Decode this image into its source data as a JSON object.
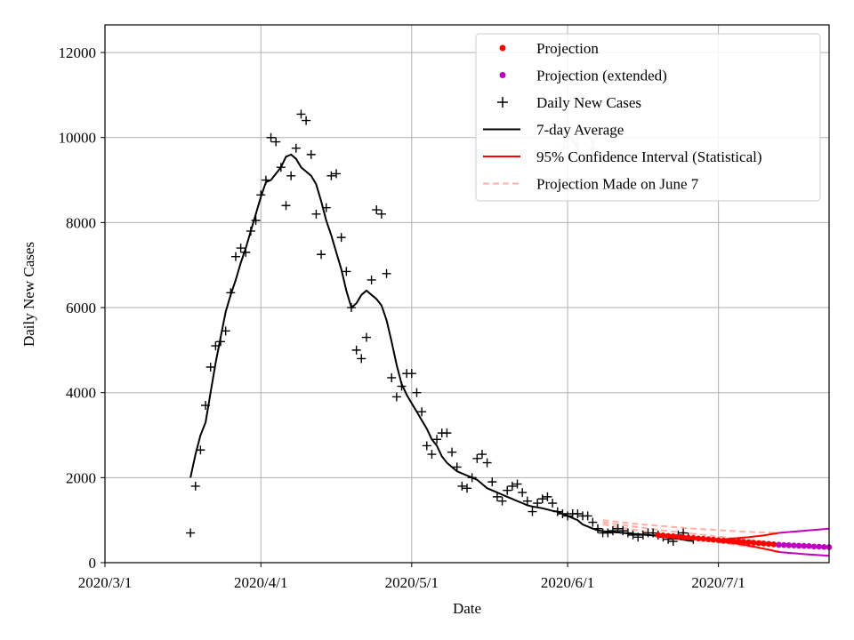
{
  "chart_data": {
    "type": "line",
    "title": "NY",
    "xlabel": "Date",
    "ylabel": "Daily New Cases",
    "x_axis": {
      "start_day": 0,
      "end_day": 144,
      "ticks": [
        {
          "day": 0,
          "label": "2020/3/1"
        },
        {
          "day": 31,
          "label": "2020/4/1"
        },
        {
          "day": 61,
          "label": "2020/5/1"
        },
        {
          "day": 92,
          "label": "2020/6/1"
        },
        {
          "day": 122,
          "label": "2020/7/1"
        }
      ]
    },
    "y_axis": {
      "min": 0,
      "max": 12650,
      "ticks": [
        {
          "value": 0,
          "label": "0"
        },
        {
          "value": 2000,
          "label": "2000"
        },
        {
          "value": 4000,
          "label": "4000"
        },
        {
          "value": 6000,
          "label": "6000"
        },
        {
          "value": 8000,
          "label": "8000"
        },
        {
          "value": 10000,
          "label": "10000"
        },
        {
          "value": 12000,
          "label": "12000"
        }
      ]
    },
    "grid": true,
    "legend_position": "top-right",
    "legend": [
      {
        "label": "Projection",
        "kind": "dot",
        "color": "#ff0000"
      },
      {
        "label": "Projection (extended)",
        "kind": "dot",
        "color": "#bf00bf"
      },
      {
        "label": "Daily New Cases",
        "kind": "plus",
        "color": "#000000"
      },
      {
        "label": "7-day Average",
        "kind": "line",
        "color": "#000000"
      },
      {
        "label": "95% Confidence Interval (Statistical)",
        "kind": "line",
        "color": "#ff0000"
      },
      {
        "label": "Projection Made on June 7",
        "kind": "dashed",
        "color": "#ffb0a8"
      }
    ],
    "series": [
      {
        "name": "Daily New Cases",
        "days": [
          17,
          18,
          19,
          20,
          21,
          22,
          23,
          24,
          25,
          26,
          27,
          28,
          29,
          30,
          31,
          32,
          33,
          34,
          35,
          36,
          37,
          38,
          39,
          40,
          41,
          42,
          43,
          44,
          45,
          46,
          47,
          48,
          49,
          50,
          51,
          52,
          53,
          54,
          55,
          56,
          57,
          58,
          59,
          60,
          61,
          62,
          63,
          64,
          65,
          66,
          67,
          68,
          69,
          70,
          71,
          72,
          73,
          74,
          75,
          76,
          77,
          78,
          79,
          80,
          81,
          82,
          83,
          84,
          85,
          86,
          87,
          88,
          89,
          90,
          91,
          92,
          93,
          94,
          95,
          96,
          97,
          98,
          99,
          100,
          101,
          102,
          103,
          104,
          105,
          106,
          107,
          108,
          109,
          110,
          111,
          112,
          113,
          114,
          115,
          116,
          117
        ],
        "values": [
          700,
          1800,
          2650,
          3700,
          4600,
          5100,
          5200,
          5450,
          6350,
          7200,
          7400,
          7300,
          7800,
          8050,
          8650,
          9000,
          10000,
          9900,
          9300,
          8400,
          9100,
          9750,
          10550,
          10400,
          9600,
          8200,
          7250,
          8350,
          9100,
          9150,
          7650,
          6850,
          6000,
          5000,
          4800,
          5300,
          6650,
          8300,
          8200,
          6800,
          4350,
          3900,
          4150,
          4450,
          4450,
          4000,
          3550,
          2750,
          2550,
          2900,
          3050,
          3050,
          2600,
          2250,
          1800,
          1750,
          2000,
          2450,
          2550,
          2350,
          1900,
          1550,
          1450,
          1700,
          1800,
          1850,
          1650,
          1450,
          1200,
          1400,
          1500,
          1550,
          1400,
          1200,
          1150,
          1100,
          1150,
          1150,
          1100,
          1100,
          950,
          800,
          700,
          700,
          750,
          800,
          750,
          700,
          650,
          600,
          650,
          700,
          700,
          650,
          600,
          550,
          500,
          650,
          700,
          600,
          550
        ]
      },
      {
        "name": "7-day Average",
        "days": [
          17,
          18,
          19,
          20,
          21,
          22,
          23,
          24,
          25,
          26,
          27,
          28,
          29,
          30,
          31,
          32,
          33,
          34,
          35,
          36,
          37,
          38,
          39,
          40,
          41,
          42,
          43,
          44,
          45,
          46,
          47,
          48,
          49,
          50,
          51,
          52,
          53,
          54,
          55,
          56,
          57,
          58,
          59,
          60,
          61,
          62,
          63,
          64,
          65,
          66,
          67,
          68,
          69,
          70,
          71,
          72,
          73,
          74,
          75,
          76,
          77,
          78,
          79,
          80,
          81,
          82,
          83,
          84,
          85,
          86,
          87,
          88,
          89,
          90,
          91,
          92,
          93,
          94,
          95,
          96,
          97,
          98,
          99,
          100,
          101,
          102,
          103,
          104,
          105,
          106,
          107,
          108,
          109,
          110,
          111,
          112,
          113,
          114,
          115,
          116,
          117
        ],
        "values": [
          2000,
          2550,
          3000,
          3300,
          4000,
          4700,
          5300,
          5900,
          6300,
          6650,
          7050,
          7400,
          7800,
          8200,
          8600,
          8950,
          9000,
          9150,
          9300,
          9550,
          9600,
          9500,
          9300,
          9200,
          9100,
          8900,
          8500,
          8050,
          7700,
          7300,
          6900,
          6400,
          6000,
          6100,
          6300,
          6400,
          6300,
          6200,
          6050,
          5700,
          5200,
          4650,
          4200,
          3950,
          3750,
          3550,
          3350,
          3150,
          2900,
          2750,
          2500,
          2350,
          2250,
          2150,
          2100,
          2050,
          2000,
          1950,
          1850,
          1750,
          1700,
          1650,
          1600,
          1550,
          1500,
          1450,
          1400,
          1350,
          1320,
          1300,
          1280,
          1250,
          1220,
          1200,
          1150,
          1100,
          1050,
          1000,
          900,
          850,
          800,
          760,
          740,
          730,
          720,
          710,
          700,
          690,
          680,
          670,
          660,
          650,
          640,
          630,
          610,
          590,
          570,
          560,
          540,
          520,
          510
        ]
      },
      {
        "name": "Projection",
        "days": [
          110,
          111,
          112,
          113,
          114,
          115,
          116,
          117,
          118,
          119,
          120,
          121,
          122,
          123,
          124,
          125,
          126,
          127,
          128,
          129,
          130,
          131,
          132,
          133,
          134
        ],
        "values": [
          650,
          640,
          630,
          620,
          610,
          600,
          590,
          580,
          570,
          560,
          550,
          540,
          530,
          520,
          510,
          500,
          500,
          490,
          480,
          470,
          460,
          450,
          440,
          430,
          420
        ]
      },
      {
        "name": "Projection (extended)",
        "days": [
          134,
          135,
          136,
          137,
          138,
          139,
          140,
          141,
          142,
          143,
          144
        ],
        "values": [
          420,
          415,
          410,
          405,
          400,
          395,
          390,
          380,
          375,
          370,
          365
        ]
      },
      {
        "name": "95% CI upper (Statistical)",
        "days": [
          122,
          125,
          128,
          131,
          134
        ],
        "values": [
          540,
          570,
          600,
          640,
          700
        ]
      },
      {
        "name": "95% CI lower (Statistical)",
        "days": [
          122,
          125,
          128,
          131,
          134
        ],
        "values": [
          500,
          460,
          400,
          330,
          250
        ]
      },
      {
        "name": "95% CI upper (extended)",
        "days": [
          134,
          139,
          144
        ],
        "values": [
          700,
          750,
          800
        ]
      },
      {
        "name": "95% CI lower (extended)",
        "days": [
          134,
          139,
          144
        ],
        "values": [
          250,
          200,
          160
        ]
      },
      {
        "name": "Projection Made on June 7 (upper)",
        "days": [
          99,
          105,
          111,
          117,
          123,
          129,
          134
        ],
        "values": [
          1000,
          920,
          860,
          800,
          760,
          720,
          700
        ]
      },
      {
        "name": "Projection Made on June 7 (middle)",
        "days": [
          99,
          105,
          111,
          117,
          123,
          129,
          134
        ],
        "values": [
          950,
          850,
          760,
          680,
          600,
          520,
          460
        ]
      },
      {
        "name": "Projection Made on June 7 (lower)",
        "days": [
          99,
          105,
          111,
          117,
          123,
          129,
          134
        ],
        "values": [
          900,
          780,
          660,
          560,
          460,
          360,
          280
        ]
      }
    ]
  }
}
